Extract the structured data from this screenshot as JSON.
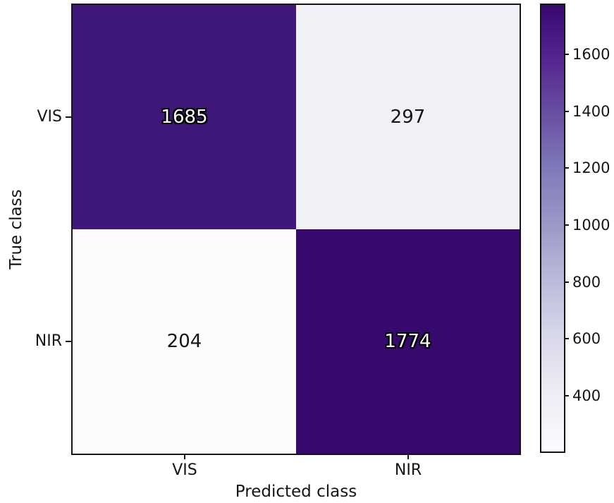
{
  "figure": {
    "background": "#ffffff",
    "frame_color": "#151515"
  },
  "chart_data": {
    "type": "heatmap",
    "subtype": "confusion-matrix",
    "title": "",
    "xlabel": "Predicted class",
    "ylabel": "True class",
    "row_labels": [
      "VIS",
      "NIR"
    ],
    "col_labels": [
      "VIS",
      "NIR"
    ],
    "matrix": [
      [
        1685,
        297
      ],
      [
        204,
        1774
      ]
    ],
    "cells": [
      {
        "row": "VIS",
        "col": "VIS",
        "value": "1685",
        "color": "#3d1878",
        "text": "light"
      },
      {
        "row": "VIS",
        "col": "NIR",
        "value": "297",
        "color": "#f2f0f7",
        "text": "dark"
      },
      {
        "row": "NIR",
        "col": "VIS",
        "value": "204",
        "color": "#fcfbfd",
        "text": "dark"
      },
      {
        "row": "NIR",
        "col": "NIR",
        "value": "1774",
        "color": "#36096f",
        "text": "light"
      }
    ],
    "colorbar": {
      "vmin": 204,
      "vmax": 1774,
      "ticks": [
        "400",
        "600",
        "800",
        "1000",
        "1200",
        "1400",
        "1600"
      ],
      "gradient_bottom_to_top": [
        "#fcfbfd",
        "#efedf5",
        "#dadaeb",
        "#bcbddc",
        "#9e9ac8",
        "#807dba",
        "#6a51a3",
        "#54278f",
        "#36096f"
      ]
    },
    "grid": false,
    "legend": false
  }
}
